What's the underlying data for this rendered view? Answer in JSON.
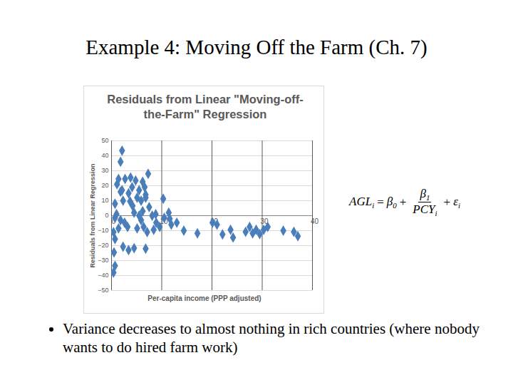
{
  "chart_data": {
    "type": "scatter",
    "title": "Residuals from Linear \"Moving-off-the-Farm\" Regression",
    "x_label": "Per-capita income (PPP adjusted)",
    "y_label": "Residuals from Linear Regression",
    "x": [
      2.1,
      1.8,
      1.4,
      2.7,
      1.1,
      2.1,
      1.8,
      2.3,
      0.7,
      3.8,
      4.8,
      4.1,
      3.4,
      3.7,
      4.2,
      4.5,
      5.5,
      5.1,
      5.9,
      6.2,
      6.6,
      6.8,
      7.3,
      6.8,
      7.5,
      6.2,
      5.5,
      0.7,
      1.0,
      1.8,
      2.6,
      3.2,
      1.4,
      0.4,
      0.7,
      0.5,
      0.7,
      0.4,
      3.4,
      4.5,
      5.1,
      5.9,
      6.4,
      7.1,
      6.8,
      8.1,
      8.8,
      8.9,
      9.6,
      10.3,
      10.5,
      11.4,
      11.6,
      11.9,
      13.0,
      14.4,
      17.1,
      20.1,
      21.0,
      22.1,
      23.7,
      24.2,
      26.7,
      27.5,
      28.1,
      28.8,
      29.5,
      30.3,
      31.1,
      34.2,
      36.3,
      37.1,
      2.3,
      8.4
    ],
    "values": [
      43.4,
      36,
      24.5,
      24.5,
      21,
      17,
      16,
      10,
      8,
      25.5,
      23.5,
      19,
      15,
      9.5,
      6.5,
      2,
      17,
      12,
      10,
      22.6,
      19,
      14,
      28,
      12,
      5.7,
      3,
      0,
      -1.4,
      1,
      -3,
      -4.7,
      -7.5,
      -8.5,
      -11,
      -15.6,
      -24.5,
      -33.5,
      -38,
      -23,
      -21.7,
      -8.5,
      -3,
      -7.5,
      -11,
      -22,
      0,
      1,
      -4.7,
      -7.5,
      11.3,
      -1.4,
      2,
      -2,
      -6,
      -4.7,
      -10,
      -11.8,
      -4.7,
      -6,
      -12.5,
      -9.4,
      -14.6,
      -10.8,
      -7.5,
      -11.8,
      -9.4,
      -12.3,
      -9.4,
      -7.5,
      -10,
      -10.8,
      -13.7,
      -20.7,
      -9.4
    ],
    "color": "#4a7ebb",
    "marker": "diamond",
    "xlim": [
      0,
      40
    ],
    "xticks": [
      0,
      10,
      20,
      30,
      40
    ],
    "ylim": [
      -50,
      50
    ],
    "yticks": [
      -50,
      -40,
      -30,
      -20,
      -10,
      0,
      10,
      20,
      30,
      40,
      50
    ],
    "grid": true
  },
  "slide": {
    "title": "Example 4: Moving Off the Farm (Ch. 7)",
    "equation": {
      "left": "AGL",
      "left_index": "i",
      "operators": [
        "=",
        "+",
        "+"
      ],
      "intercept": "β",
      "intercept_index": "0",
      "numerator": "β",
      "numerator_index": "1",
      "denominator": "PCY",
      "denominator_index": "i",
      "error": "ε",
      "error_index": "i"
    },
    "bullets": [
      "Variance decreases to almost nothing in rich countries (where nobody wants to do hired farm work)"
    ]
  }
}
